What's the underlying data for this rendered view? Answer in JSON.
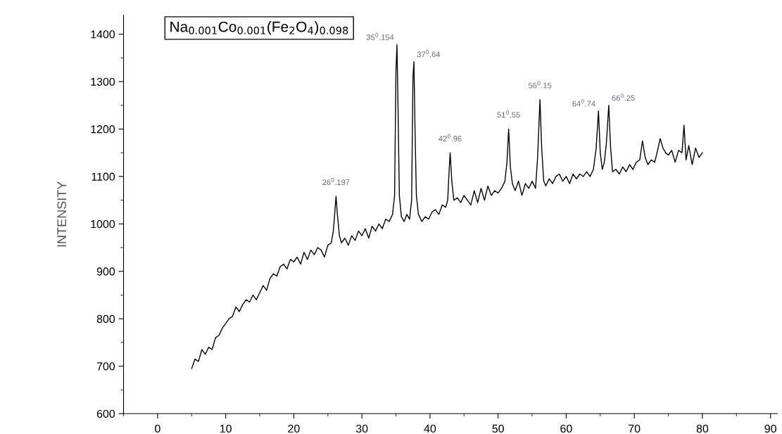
{
  "chart_data": {
    "type": "line",
    "title": "Na$_{0.001}$Co$_{0.001}$(Fe$_{2}$O$_{4}$)$_{0.098}$",
    "ylabel": "INTENSITY",
    "xlim": [
      -5,
      91
    ],
    "xticks": [
      0,
      10,
      20,
      30,
      40,
      50,
      60,
      70,
      80,
      90
    ],
    "ylim": [
      600,
      1440
    ],
    "yticks": [
      600,
      700,
      800,
      900,
      1000,
      1100,
      1200,
      1300,
      1400
    ],
    "grid": false,
    "marker": "none",
    "line_style": "solid",
    "series": [
      {
        "color": "#000000",
        "x": [
          5.0,
          5.5,
          6.0,
          6.5,
          7.0,
          7.5,
          8.0,
          8.5,
          9.0,
          9.5,
          10.0,
          10.5,
          11.0,
          11.5,
          12.0,
          12.5,
          13.0,
          13.5,
          14.0,
          14.5,
          15.0,
          15.5,
          16.0,
          16.5,
          17.0,
          17.5,
          18.0,
          18.5,
          19.0,
          19.5,
          20.0,
          20.5,
          21.0,
          21.5,
          22.0,
          22.5,
          23.0,
          23.5,
          24.0,
          24.5,
          25.0,
          25.5,
          25.8,
          26.0,
          26.2,
          26.4,
          26.7,
          27.0,
          27.5,
          28.0,
          28.5,
          29.0,
          29.5,
          30.0,
          30.5,
          31.0,
          31.5,
          32.0,
          32.5,
          33.0,
          33.5,
          34.0,
          34.5,
          34.8,
          35.0,
          35.15,
          35.3,
          35.5,
          35.8,
          36.2,
          36.6,
          37.0,
          37.3,
          37.5,
          37.64,
          37.8,
          38.0,
          38.3,
          38.8,
          39.3,
          39.8,
          40.3,
          40.8,
          41.3,
          41.8,
          42.3,
          42.6,
          42.8,
          42.96,
          43.2,
          43.5,
          44.0,
          44.5,
          45.0,
          45.5,
          46.0,
          46.5,
          47.0,
          47.5,
          48.0,
          48.5,
          49.0,
          49.5,
          50.0,
          50.5,
          51.0,
          51.3,
          51.55,
          51.8,
          52.1,
          52.5,
          53.0,
          53.5,
          54.0,
          54.5,
          55.0,
          55.5,
          55.8,
          56.15,
          56.4,
          56.7,
          57.0,
          57.5,
          58.0,
          58.5,
          59.0,
          59.5,
          60.0,
          60.5,
          61.0,
          61.5,
          62.0,
          62.5,
          63.0,
          63.5,
          64.0,
          64.4,
          64.74,
          65.0,
          65.3,
          65.6,
          65.9,
          66.25,
          66.5,
          66.8,
          67.3,
          67.8,
          68.3,
          68.8,
          69.3,
          69.8,
          70.3,
          70.8,
          71.2,
          71.6,
          72.0,
          72.5,
          73.0,
          73.5,
          73.8,
          74.2,
          74.6,
          75.0,
          75.5,
          76.0,
          76.5,
          77.0,
          77.3,
          77.6,
          78.0,
          78.5,
          79.0,
          79.5,
          80.0
        ],
        "values": [
          695,
          715,
          710,
          735,
          725,
          740,
          735,
          760,
          765,
          780,
          790,
          800,
          805,
          825,
          815,
          830,
          840,
          835,
          850,
          840,
          855,
          870,
          860,
          885,
          895,
          890,
          910,
          915,
          905,
          925,
          920,
          930,
          915,
          940,
          925,
          945,
          935,
          950,
          945,
          930,
          955,
          960,
          985,
          1020,
          1058,
          1020,
          975,
          960,
          970,
          955,
          975,
          965,
          985,
          975,
          990,
          970,
          995,
          985,
          1000,
          990,
          1010,
          1005,
          1020,
          1060,
          1320,
          1378,
          1250,
          1060,
          1015,
          1005,
          1020,
          1010,
          1050,
          1310,
          1342,
          1200,
          1060,
          1020,
          1005,
          1015,
          1010,
          1025,
          1030,
          1020,
          1040,
          1035,
          1050,
          1110,
          1150,
          1090,
          1050,
          1055,
          1045,
          1060,
          1050,
          1040,
          1070,
          1045,
          1075,
          1050,
          1080,
          1060,
          1070,
          1065,
          1075,
          1090,
          1130,
          1200,
          1120,
          1085,
          1070,
          1090,
          1060,
          1085,
          1075,
          1090,
          1075,
          1140,
          1262,
          1160,
          1090,
          1080,
          1095,
          1085,
          1100,
          1105,
          1090,
          1100,
          1085,
          1105,
          1095,
          1105,
          1100,
          1110,
          1100,
          1115,
          1160,
          1238,
          1150,
          1115,
          1130,
          1170,
          1250,
          1165,
          1110,
          1115,
          1105,
          1120,
          1110,
          1125,
          1115,
          1130,
          1135,
          1175,
          1140,
          1125,
          1135,
          1130,
          1160,
          1180,
          1160,
          1150,
          1145,
          1155,
          1130,
          1155,
          1150,
          1208,
          1135,
          1165,
          1125,
          1160,
          1140,
          1150
        ]
      }
    ],
    "annotations": [
      {
        "text": "26$^{0}$.197",
        "x": 26.2,
        "y": 1058
      },
      {
        "text": "35$^{0}$.154",
        "x": 35.15,
        "y": 1378
      },
      {
        "text": "37$^{0}$.64",
        "x": 37.64,
        "y": 1342
      },
      {
        "text": "42$^{0}$.96",
        "x": 42.96,
        "y": 1150
      },
      {
        "text": "51$^{0}$.55",
        "x": 51.55,
        "y": 1200
      },
      {
        "text": "56$^{0}$.15",
        "x": 56.15,
        "y": 1262
      },
      {
        "text": "64$^{0}$.74",
        "x": 64.74,
        "y": 1238
      },
      {
        "text": "66$^{0}$.25",
        "x": 66.25,
        "y": 1250
      }
    ]
  }
}
